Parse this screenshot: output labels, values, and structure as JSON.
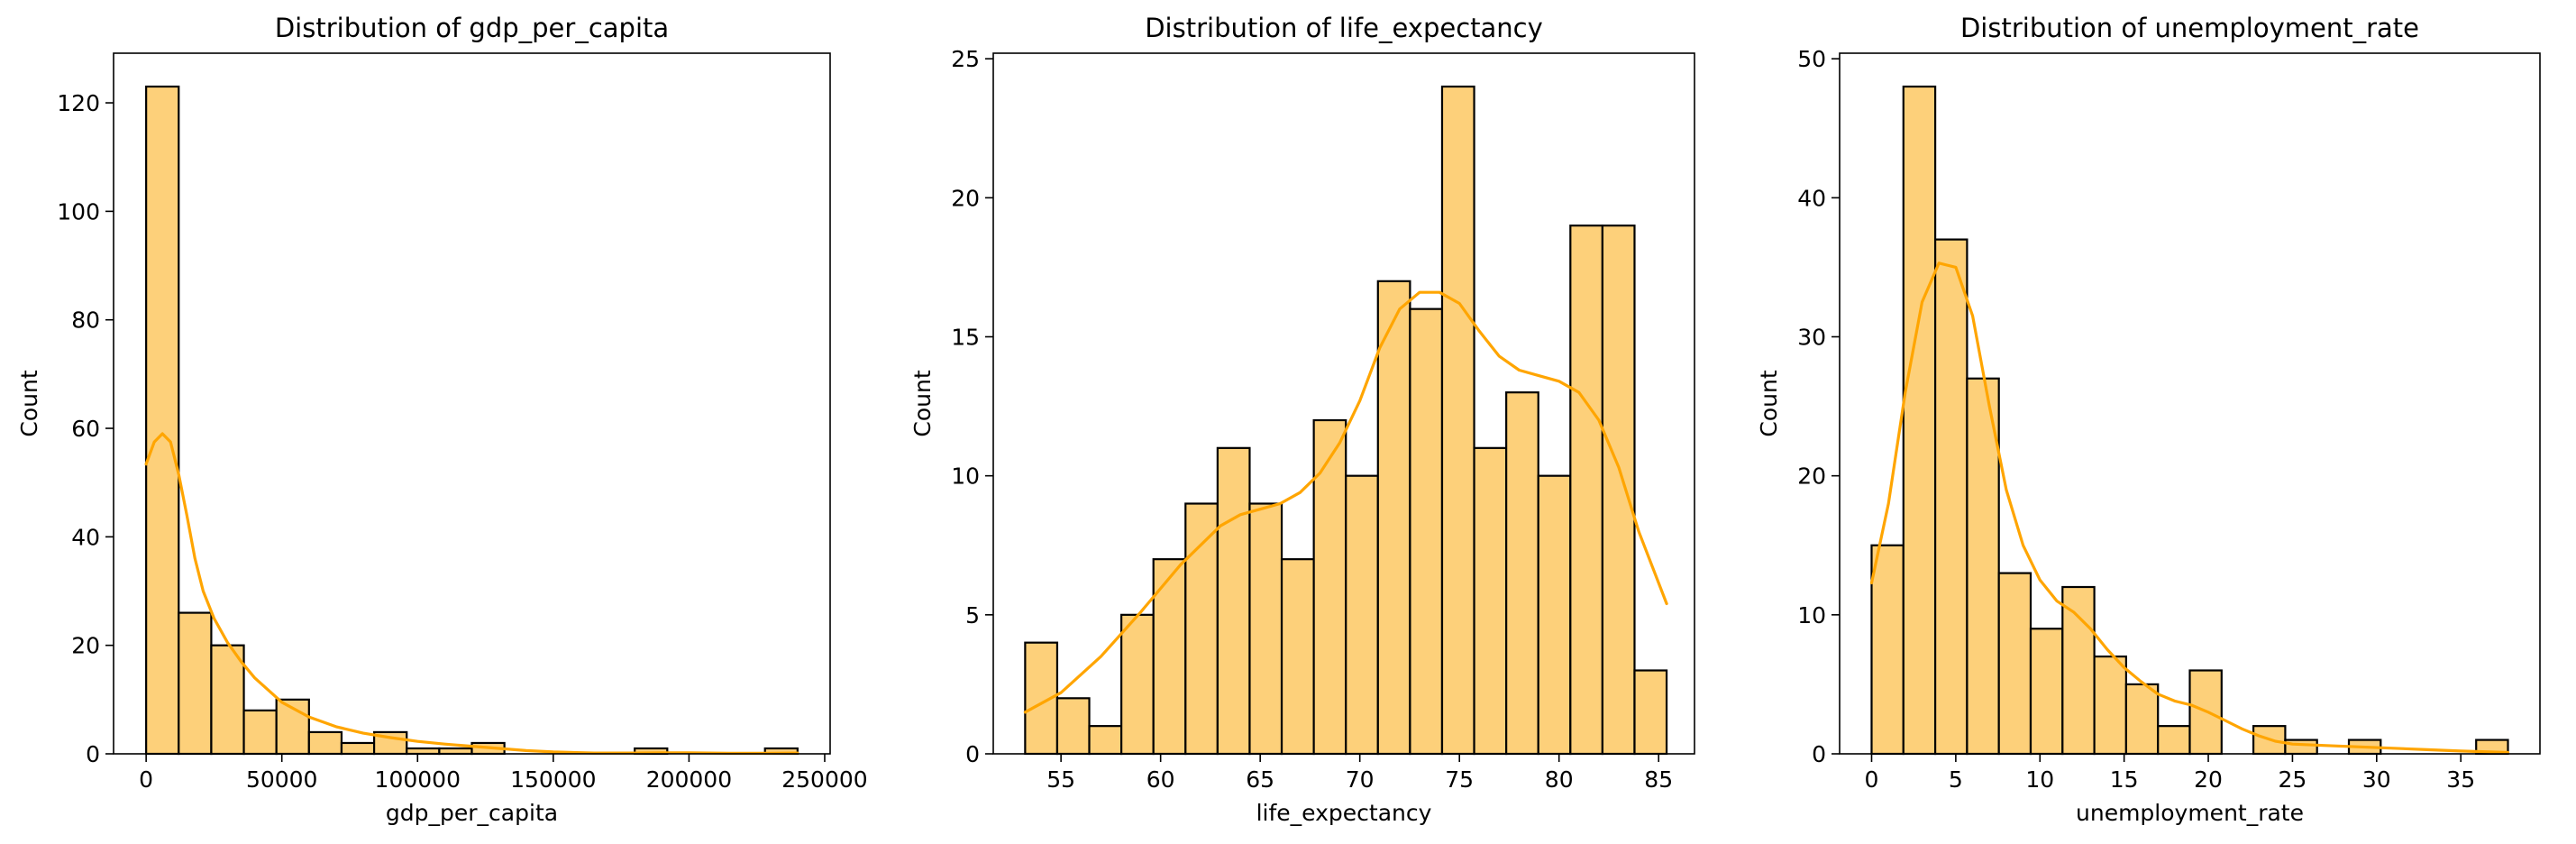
{
  "chart_data": [
    {
      "type": "bar",
      "title": "Distribution of gdp_per_capita",
      "xlabel": "gdp_per_capita",
      "ylabel": "Count",
      "xlim": [
        -12000,
        252000
      ],
      "ylim": [
        0,
        129.15
      ],
      "xticks": [
        0,
        50000,
        100000,
        150000,
        200000,
        250000
      ],
      "xtick_labels": [
        "0",
        "50000",
        "100000",
        "150000",
        "200000",
        "250000"
      ],
      "yticks": [
        0,
        20,
        40,
        60,
        80,
        100,
        120
      ],
      "ytick_labels": [
        "0",
        "20",
        "40",
        "60",
        "80",
        "100",
        "120"
      ],
      "bin_start": 0,
      "bin_width": 12000,
      "values": [
        123,
        26,
        20,
        8,
        10,
        4,
        2,
        4,
        1,
        1,
        2,
        0,
        0,
        0,
        0,
        1,
        0,
        0,
        0,
        1
      ],
      "kde": [
        [
          0,
          53.4
        ],
        [
          3000,
          57.5
        ],
        [
          6000,
          59.0
        ],
        [
          9000,
          57.5
        ],
        [
          12000,
          51.5
        ],
        [
          15000,
          44
        ],
        [
          18000,
          36
        ],
        [
          21000,
          30
        ],
        [
          25000,
          25
        ],
        [
          30000,
          20.5
        ],
        [
          35000,
          17
        ],
        [
          40000,
          14
        ],
        [
          50000,
          9.5
        ],
        [
          60000,
          6.8
        ],
        [
          70000,
          5
        ],
        [
          80000,
          3.8
        ],
        [
          90000,
          3
        ],
        [
          100000,
          2.3
        ],
        [
          110000,
          1.8
        ],
        [
          120000,
          1.4
        ],
        [
          130000,
          1
        ],
        [
          140000,
          0.6
        ],
        [
          150000,
          0.35
        ],
        [
          165000,
          0.15
        ],
        [
          180000,
          0.15
        ],
        [
          190000,
          0.2
        ],
        [
          200000,
          0.2
        ],
        [
          215000,
          0.1
        ],
        [
          230000,
          0.1
        ],
        [
          240000,
          0.15
        ]
      ],
      "bar_color": "#fdd07a",
      "kde_color": "#ffa500"
    },
    {
      "type": "bar",
      "title": "Distribution of life_expectancy",
      "xlabel": "life_expectancy",
      "ylabel": "Count",
      "xlim": [
        51.6,
        86.8
      ],
      "ylim": [
        0,
        25.2
      ],
      "xticks": [
        55,
        60,
        65,
        70,
        75,
        80,
        85
      ],
      "xtick_labels": [
        "55",
        "60",
        "65",
        "70",
        "75",
        "80",
        "85"
      ],
      "yticks": [
        0,
        5,
        10,
        15,
        20,
        25
      ],
      "ytick_labels": [
        "0",
        "5",
        "10",
        "15",
        "20",
        "25"
      ],
      "bin_start": 53.2,
      "bin_width": 1.61,
      "values": [
        4,
        2,
        1,
        5,
        7,
        9,
        11,
        9,
        7,
        12,
        10,
        17,
        16,
        24,
        11,
        13,
        10,
        19,
        19,
        3
      ],
      "kde": [
        [
          53.2,
          1.5
        ],
        [
          55,
          2.2
        ],
        [
          57,
          3.5
        ],
        [
          59,
          5.1
        ],
        [
          61,
          6.8
        ],
        [
          63,
          8.2
        ],
        [
          64,
          8.6
        ],
        [
          65,
          8.8
        ],
        [
          66,
          9
        ],
        [
          67,
          9.4
        ],
        [
          68,
          10.1
        ],
        [
          69,
          11.2
        ],
        [
          70,
          12.7
        ],
        [
          71,
          14.6
        ],
        [
          72,
          16
        ],
        [
          73,
          16.6
        ],
        [
          74,
          16.6
        ],
        [
          75,
          16.2
        ],
        [
          76,
          15.2
        ],
        [
          77,
          14.3
        ],
        [
          78,
          13.8
        ],
        [
          79,
          13.6
        ],
        [
          80,
          13.4
        ],
        [
          81,
          13
        ],
        [
          82,
          12
        ],
        [
          83,
          10.3
        ],
        [
          84,
          8
        ],
        [
          85.4,
          5.4
        ]
      ],
      "bar_color": "#fdd07a",
      "kde_color": "#ffa500"
    },
    {
      "type": "bar",
      "title": "Distribution of unemployment_rate",
      "xlabel": "unemployment_rate",
      "ylabel": "Count",
      "xlim": [
        -1.9,
        39.7
      ],
      "ylim": [
        0,
        50.4
      ],
      "xticks": [
        0,
        5,
        10,
        15,
        20,
        25,
        30,
        35
      ],
      "xtick_labels": [
        "0",
        "5",
        "10",
        "15",
        "20",
        "25",
        "30",
        "35"
      ],
      "yticks": [
        0,
        10,
        20,
        30,
        40,
        50
      ],
      "ytick_labels": [
        "0",
        "10",
        "20",
        "30",
        "40",
        "50"
      ],
      "bin_start": 0,
      "bin_width": 1.89,
      "values": [
        15,
        48,
        37,
        27,
        13,
        9,
        12,
        7,
        5,
        2,
        6,
        0,
        2,
        1,
        0,
        1,
        0,
        0,
        0,
        1
      ],
      "kde": [
        [
          0,
          12.3
        ],
        [
          1,
          18
        ],
        [
          2,
          26
        ],
        [
          3,
          32.5
        ],
        [
          4,
          35.3
        ],
        [
          5,
          35
        ],
        [
          6,
          31.5
        ],
        [
          7,
          25
        ],
        [
          8,
          19
        ],
        [
          9,
          15
        ],
        [
          10,
          12.5
        ],
        [
          11,
          11
        ],
        [
          12,
          10.2
        ],
        [
          13,
          9
        ],
        [
          14,
          7.5
        ],
        [
          15,
          6.2
        ],
        [
          16,
          5.2
        ],
        [
          17,
          4.3
        ],
        [
          18,
          3.8
        ],
        [
          19,
          3.5
        ],
        [
          20,
          3
        ],
        [
          21,
          2.4
        ],
        [
          22,
          1.8
        ],
        [
          23,
          1.3
        ],
        [
          24,
          0.9
        ],
        [
          25,
          0.7
        ],
        [
          27,
          0.6
        ],
        [
          29,
          0.5
        ],
        [
          31,
          0.4
        ],
        [
          33,
          0.3
        ],
        [
          35,
          0.2
        ],
        [
          37.8,
          0.1
        ]
      ],
      "bar_color": "#fdd07a",
      "kde_color": "#ffa500"
    }
  ]
}
